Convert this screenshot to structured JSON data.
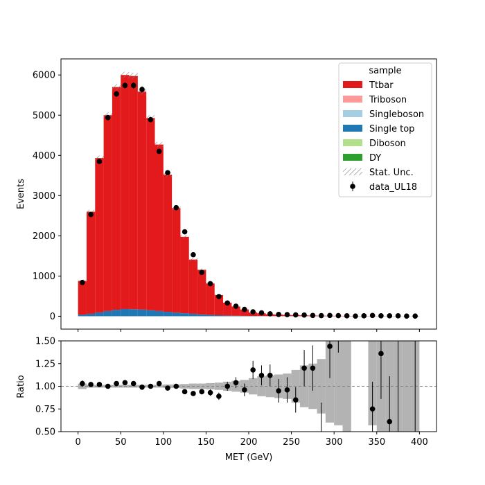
{
  "chart_data": [
    {
      "type": "bar",
      "panel": "main",
      "xlabel": "",
      "ylabel": "Events",
      "xlim": [
        -20,
        420
      ],
      "ylim": [
        -320,
        6400
      ],
      "yticks": [
        0,
        1000,
        2000,
        3000,
        4000,
        5000,
        6000
      ],
      "xticks": [
        0,
        50,
        100,
        150,
        200,
        250,
        300,
        350,
        400
      ],
      "bin_edges": [
        0,
        10,
        20,
        30,
        40,
        50,
        60,
        70,
        80,
        90,
        100,
        110,
        120,
        130,
        140,
        150,
        160,
        170,
        180,
        190,
        200,
        210,
        220,
        230,
        240,
        250,
        260,
        270,
        280,
        290,
        300,
        310,
        320,
        330,
        340,
        350,
        360,
        370,
        380,
        390,
        400
      ],
      "stacked": true,
      "series": [
        {
          "name": "DY",
          "color": "#2ca02c",
          "values": [
            0,
            0,
            0,
            0,
            0,
            0,
            0,
            0,
            0,
            0,
            0,
            0,
            0,
            0,
            0,
            0,
            0,
            0,
            0,
            0,
            0,
            0,
            0,
            0,
            0,
            0,
            0,
            0,
            0,
            0,
            0,
            0,
            0,
            0,
            0,
            0,
            0,
            0,
            0,
            0
          ]
        },
        {
          "name": "Diboson",
          "color": "#b2df8a",
          "values": [
            0,
            0,
            0,
            0,
            0,
            0,
            0,
            0,
            0,
            0,
            0,
            0,
            0,
            0,
            0,
            0,
            0,
            0,
            0,
            0,
            0,
            0,
            0,
            0,
            0,
            0,
            0,
            0,
            0,
            0,
            0,
            0,
            0,
            0,
            0,
            0,
            0,
            0,
            0,
            0
          ]
        },
        {
          "name": "Single top",
          "color": "#1f78b4",
          "values": [
            40,
            60,
            95,
            130,
            160,
            180,
            175,
            165,
            150,
            130,
            110,
            90,
            75,
            60,
            45,
            35,
            25,
            18,
            12,
            9,
            7,
            5,
            4,
            3,
            2,
            2,
            1,
            1,
            1,
            1,
            1,
            1,
            1,
            1,
            1,
            1,
            1,
            1,
            1,
            1
          ]
        },
        {
          "name": "Singleboson",
          "color": "#a6cee3",
          "values": [
            0,
            0,
            0,
            0,
            0,
            0,
            0,
            0,
            0,
            0,
            0,
            0,
            0,
            0,
            0,
            0,
            0,
            0,
            0,
            0,
            0,
            0,
            0,
            0,
            0,
            0,
            0,
            0,
            0,
            0,
            0,
            0,
            0,
            0,
            0,
            0,
            0,
            0,
            0,
            0
          ]
        },
        {
          "name": "Triboson",
          "color": "#fb9a99",
          "values": [
            0,
            0,
            0,
            0,
            0,
            0,
            0,
            0,
            0,
            0,
            0,
            0,
            0,
            0,
            0,
            0,
            0,
            0,
            0,
            0,
            0,
            0,
            0,
            0,
            0,
            0,
            0,
            0,
            0,
            0,
            0,
            0,
            0,
            0,
            0,
            0,
            0,
            0,
            0,
            0
          ]
        },
        {
          "name": "Ttbar",
          "color": "#e31a1c",
          "values": [
            840,
            2540,
            3840,
            4870,
            5540,
            5820,
            5800,
            5420,
            4780,
            4140,
            3410,
            2600,
            1900,
            1350,
            1110,
            780,
            500,
            320,
            230,
            160,
            85,
            68,
            45,
            38,
            30,
            26,
            20,
            16,
            12,
            9,
            8,
            6,
            5,
            4,
            4,
            3,
            3,
            2,
            2,
            2
          ]
        }
      ],
      "stat_unc": [
        30,
        50,
        60,
        70,
        75,
        80,
        80,
        75,
        70,
        65,
        60,
        50,
        45,
        35,
        30,
        25,
        20,
        15,
        12,
        10,
        8,
        7,
        6,
        5,
        5,
        4,
        4,
        3,
        3,
        3,
        3,
        2,
        2,
        2,
        2,
        2,
        2,
        2,
        2,
        2
      ],
      "data": {
        "name": "data_UL18",
        "x": [
          5,
          15,
          25,
          35,
          45,
          55,
          65,
          75,
          85,
          95,
          105,
          115,
          125,
          135,
          145,
          155,
          165,
          175,
          185,
          195,
          205,
          215,
          225,
          235,
          245,
          255,
          265,
          275,
          285,
          295,
          305,
          315,
          325,
          335,
          345,
          355,
          365,
          375,
          385,
          395
        ],
        "y": [
          840,
          2530,
          3850,
          4940,
          5530,
          5740,
          5740,
          5640,
          4890,
          4100,
          3570,
          2700,
          2100,
          1530,
          1090,
          810,
          490,
          330,
          250,
          170,
          110,
          85,
          60,
          45,
          40,
          35,
          30,
          20,
          15,
          20,
          15,
          10,
          5,
          10,
          20,
          10,
          10,
          10,
          5,
          5
        ]
      },
      "legend": {
        "title": "sample",
        "placement": "top-right",
        "entries": [
          "Ttbar",
          "Triboson",
          "Singleboson",
          "Single top",
          "Diboson",
          "DY",
          "Stat. Unc.",
          "data_UL18"
        ]
      },
      "grid": false
    },
    {
      "type": "scatter",
      "panel": "ratio",
      "xlabel": "MET (GeV)",
      "ylabel": "Ratio",
      "xlim": [
        -20,
        420
      ],
      "ylim": [
        0.5,
        1.5
      ],
      "yticks": [
        0.5,
        0.75,
        1.0,
        1.25,
        1.5
      ],
      "xticks": [
        0,
        50,
        100,
        150,
        200,
        250,
        300,
        350,
        400
      ],
      "reference_line": 1.0,
      "unc_band": [
        [
          0,
          10,
          0.97,
          1.03
        ],
        [
          10,
          20,
          0.985,
          1.015
        ],
        [
          20,
          30,
          0.985,
          1.015
        ],
        [
          30,
          40,
          0.985,
          1.015
        ],
        [
          40,
          50,
          0.985,
          1.015
        ],
        [
          50,
          60,
          0.985,
          1.015
        ],
        [
          60,
          70,
          0.985,
          1.015
        ],
        [
          70,
          80,
          0.985,
          1.015
        ],
        [
          80,
          90,
          0.985,
          1.015
        ],
        [
          90,
          100,
          0.985,
          1.015
        ],
        [
          100,
          110,
          0.98,
          1.02
        ],
        [
          110,
          120,
          0.98,
          1.02
        ],
        [
          120,
          130,
          0.975,
          1.025
        ],
        [
          130,
          140,
          0.97,
          1.03
        ],
        [
          140,
          150,
          0.97,
          1.03
        ],
        [
          150,
          160,
          0.965,
          1.035
        ],
        [
          160,
          170,
          0.96,
          1.04
        ],
        [
          170,
          180,
          0.95,
          1.05
        ],
        [
          180,
          190,
          0.94,
          1.06
        ],
        [
          190,
          200,
          0.93,
          1.07
        ],
        [
          200,
          210,
          0.91,
          1.09
        ],
        [
          210,
          220,
          0.89,
          1.11
        ],
        [
          220,
          230,
          0.88,
          1.12
        ],
        [
          230,
          240,
          0.87,
          1.13
        ],
        [
          240,
          250,
          0.86,
          1.14
        ],
        [
          250,
          260,
          0.82,
          1.18
        ],
        [
          260,
          270,
          0.77,
          1.23
        ],
        [
          270,
          280,
          0.75,
          1.25
        ],
        [
          280,
          290,
          0.7,
          1.3
        ],
        [
          290,
          300,
          0.6,
          1.5
        ],
        [
          300,
          310,
          0.57,
          1.5
        ],
        [
          310,
          320,
          0.5,
          1.5
        ],
        [
          340,
          350,
          0.57,
          1.5
        ],
        [
          350,
          360,
          0.5,
          1.5
        ],
        [
          360,
          370,
          0.5,
          1.5
        ],
        [
          370,
          380,
          0.5,
          1.5
        ],
        [
          380,
          390,
          0.5,
          1.5
        ],
        [
          390,
          400,
          0.5,
          1.5
        ]
      ],
      "points": [
        {
          "x": 5,
          "y": 1.03,
          "err": 0.035
        },
        {
          "x": 15,
          "y": 1.02,
          "err": 0.02
        },
        {
          "x": 25,
          "y": 1.02,
          "err": 0.016
        },
        {
          "x": 35,
          "y": 1.0,
          "err": 0.015
        },
        {
          "x": 45,
          "y": 1.03,
          "err": 0.014
        },
        {
          "x": 55,
          "y": 1.04,
          "err": 0.014
        },
        {
          "x": 65,
          "y": 1.03,
          "err": 0.014
        },
        {
          "x": 75,
          "y": 0.99,
          "err": 0.014
        },
        {
          "x": 85,
          "y": 1.0,
          "err": 0.015
        },
        {
          "x": 95,
          "y": 1.03,
          "err": 0.016
        },
        {
          "x": 105,
          "y": 0.98,
          "err": 0.018
        },
        {
          "x": 115,
          "y": 1.0,
          "err": 0.02
        },
        {
          "x": 125,
          "y": 0.94,
          "err": 0.022
        },
        {
          "x": 135,
          "y": 0.92,
          "err": 0.025
        },
        {
          "x": 145,
          "y": 0.94,
          "err": 0.03
        },
        {
          "x": 155,
          "y": 0.93,
          "err": 0.035
        },
        {
          "x": 165,
          "y": 0.89,
          "err": 0.04
        },
        {
          "x": 175,
          "y": 1.0,
          "err": 0.05
        },
        {
          "x": 185,
          "y": 1.04,
          "err": 0.06
        },
        {
          "x": 195,
          "y": 0.96,
          "err": 0.07
        },
        {
          "x": 205,
          "y": 1.18,
          "err": 0.1
        },
        {
          "x": 215,
          "y": 1.12,
          "err": 0.11
        },
        {
          "x": 225,
          "y": 1.12,
          "err": 0.12
        },
        {
          "x": 235,
          "y": 0.95,
          "err": 0.13
        },
        {
          "x": 245,
          "y": 0.96,
          "err": 0.14
        },
        {
          "x": 255,
          "y": 0.85,
          "err": 0.14
        },
        {
          "x": 265,
          "y": 1.2,
          "err": 0.2
        },
        {
          "x": 275,
          "y": 1.2,
          "err": 0.25
        },
        {
          "x": 285,
          "y": null,
          "err": 0.3
        },
        {
          "x": 295,
          "y": 1.44,
          "err": 0.35
        },
        {
          "x": 305,
          "y": null,
          "err": 0.4
        },
        {
          "x": 345,
          "y": 0.75,
          "err": 0.3
        },
        {
          "x": 355,
          "y": 1.36,
          "err": 0.5
        },
        {
          "x": 365,
          "y": 0.61,
          "err": 0.5
        },
        {
          "x": 375,
          "y": null,
          "err": 0.5
        }
      ],
      "err_only": [
        {
          "x": 285,
          "lo": 0.5,
          "hi": 0.82
        },
        {
          "x": 305,
          "lo": 1.37,
          "hi": 1.5
        },
        {
          "x": 375,
          "lo": 0.5,
          "hi": 1.5
        },
        {
          "x": 395,
          "lo": 0.5,
          "hi": 1.5
        }
      ],
      "grid": false
    }
  ]
}
